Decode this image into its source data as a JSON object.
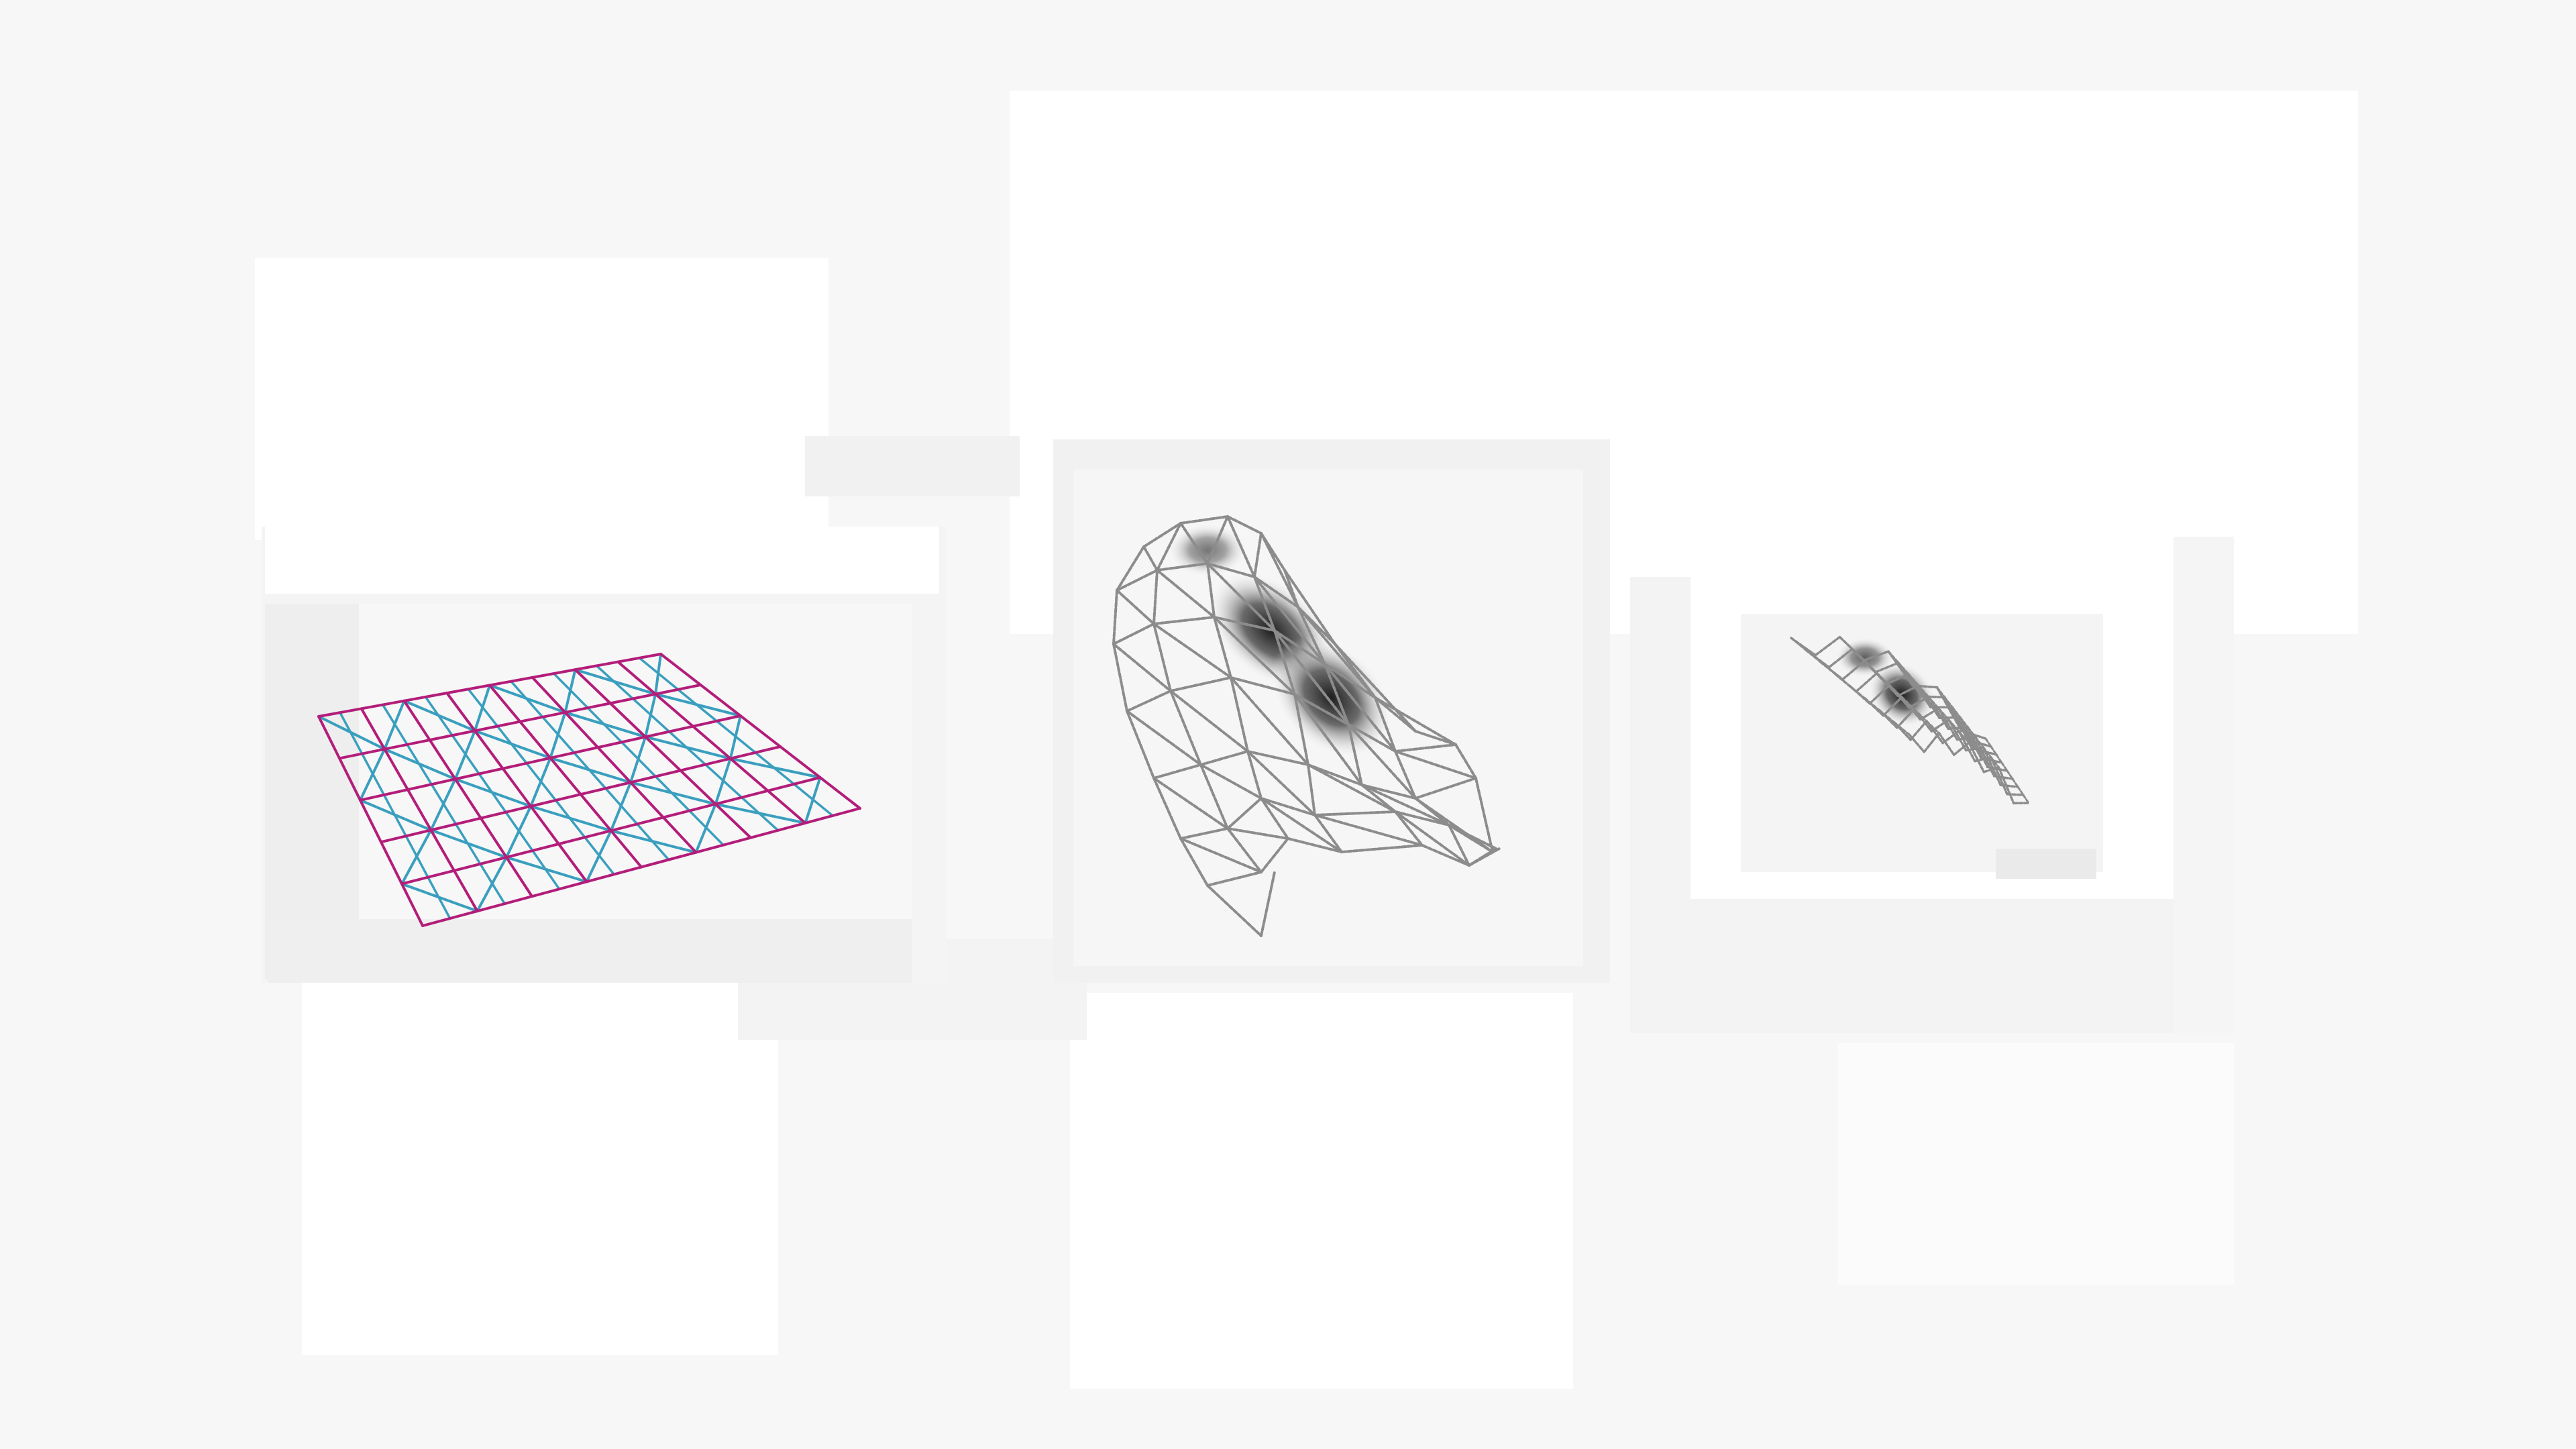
{
  "colors": {
    "background": "#f7f7f7",
    "panel_white": "#ffffff",
    "panel_light": "#f4f4f4",
    "panel_grey": "#efefef",
    "grid_outer": "#b31d7a",
    "grid_inner": "#3a9fbf",
    "shell_line": "#8c8c8c",
    "shell_shade_dark": "#1f1f1f",
    "shell_shade_light": "#ffffff"
  },
  "figures": [
    {
      "name": "flat-triangulated-grid",
      "columns": 8,
      "rows": 5
    },
    {
      "name": "arched-shell-mesh",
      "shaded": true
    },
    {
      "name": "folded-shell-mesh",
      "shaded": true
    }
  ]
}
